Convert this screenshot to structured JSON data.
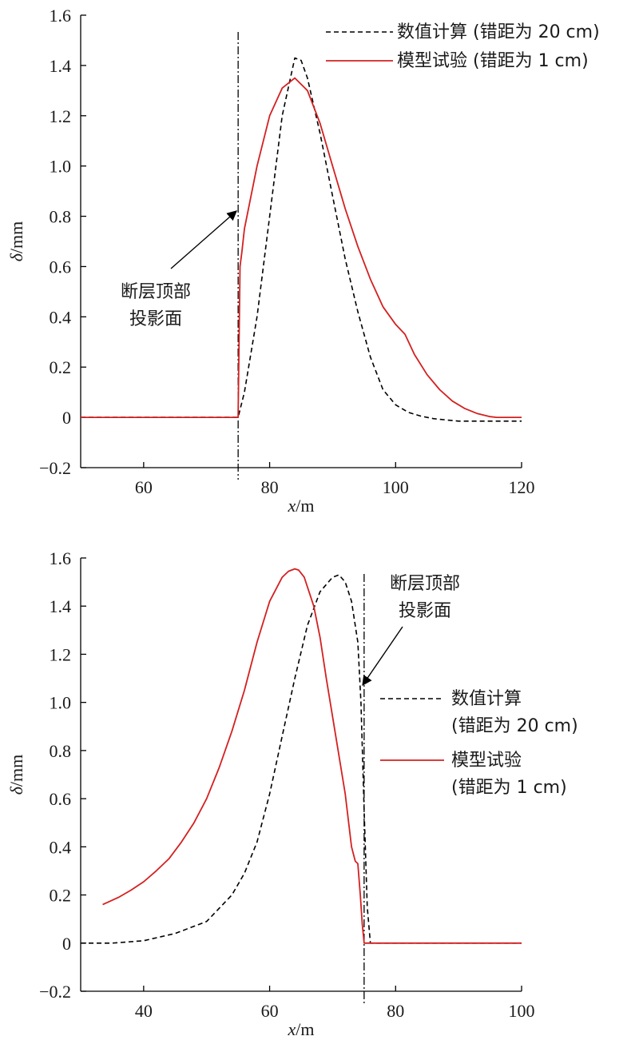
{
  "figure": {
    "charts": [
      {
        "ylabel": "δ/mm",
        "xlabel": "x/m",
        "annotation": [
          "断层顶部",
          "投影面"
        ],
        "legend_lines": [
          {
            "series": 0,
            "lines": [
              "数值计算 (错距为 20 cm)"
            ]
          },
          {
            "series": 1,
            "lines": [
              "模型试验 (错距为 1 cm)"
            ]
          }
        ]
      },
      {
        "ylabel": "δ/mm",
        "xlabel": "x/m",
        "annotation": [
          "断层顶部",
          "投影面"
        ],
        "legend_lines": [
          {
            "series": 0,
            "lines": [
              "数值计算",
              "(错距为 20 cm)"
            ]
          },
          {
            "series": 1,
            "lines": [
              "模型试验",
              "(错距为 1 cm)"
            ]
          }
        ]
      }
    ]
  },
  "chart_data": [
    {
      "type": "line",
      "xlabel": "x/m",
      "ylabel": "δ/mm",
      "xlim": [
        50,
        120
      ],
      "ylim": [
        -0.2,
        1.6
      ],
      "xticks": [
        60,
        80,
        100,
        120
      ],
      "yticks": [
        -0.2,
        0,
        0.2,
        0.4,
        0.6,
        0.8,
        1.0,
        1.2,
        1.4,
        1.6
      ],
      "ytick_labels": [
        "−0.2",
        "0",
        "0.2",
        "0.4",
        "0.6",
        "0.8",
        "1.0",
        "1.2",
        "1.4",
        "1.6"
      ],
      "fault_projection_x": 75,
      "legend_position": "top-right",
      "grid": false,
      "series": [
        {
          "name": "数值计算 (错距为 20 cm)",
          "style": "dashed",
          "color": "#000000",
          "x": [
            50,
            75,
            76,
            78,
            80,
            82,
            84,
            85,
            86,
            88,
            90,
            92,
            94,
            96,
            98,
            100,
            102,
            104,
            106,
            108,
            110,
            112,
            114,
            116,
            118,
            120
          ],
          "y": [
            0,
            0,
            0.1,
            0.4,
            0.8,
            1.2,
            1.43,
            1.42,
            1.35,
            1.13,
            0.88,
            0.63,
            0.42,
            0.24,
            0.11,
            0.05,
            0.02,
            0.005,
            -0.005,
            -0.01,
            -0.015,
            -0.015,
            -0.015,
            -0.015,
            -0.015,
            -0.015
          ]
        },
        {
          "name": "模型试验 (错距为 1 cm)",
          "style": "solid",
          "color": "#d42020",
          "x": [
            50,
            75,
            75.3,
            75.6,
            76,
            78,
            80,
            82,
            84,
            86,
            88,
            90,
            92,
            94,
            96,
            98,
            100,
            101.5,
            103,
            105,
            107,
            109,
            111,
            113,
            115,
            116,
            120
          ],
          "y": [
            0,
            0,
            0.6,
            0.66,
            0.75,
            1.0,
            1.2,
            1.31,
            1.35,
            1.3,
            1.17,
            1.0,
            0.83,
            0.68,
            0.55,
            0.44,
            0.37,
            0.33,
            0.25,
            0.17,
            0.11,
            0.065,
            0.035,
            0.015,
            0.003,
            0,
            0
          ]
        }
      ]
    },
    {
      "type": "line",
      "xlabel": "x/m",
      "ylabel": "δ/mm",
      "xlim": [
        30,
        100
      ],
      "ylim": [
        -0.2,
        1.6
      ],
      "xticks": [
        40,
        60,
        80,
        100
      ],
      "yticks": [
        -0.2,
        0,
        0.2,
        0.4,
        0.6,
        0.8,
        1.0,
        1.2,
        1.4,
        1.6
      ],
      "ytick_labels": [
        "−0.2",
        "0",
        "0.2",
        "0.4",
        "0.6",
        "0.8",
        "1.0",
        "1.2",
        "1.4",
        "1.6"
      ],
      "fault_projection_x": 75,
      "legend_position": "right",
      "grid": false,
      "series": [
        {
          "name": "数值计算 (错距为 20 cm)",
          "style": "dashed",
          "color": "#000000",
          "x": [
            30,
            35,
            40,
            45,
            50,
            54,
            56,
            58,
            60,
            62,
            64,
            66,
            68,
            70,
            71,
            72,
            73,
            74,
            74.5,
            75,
            75.5,
            76,
            80,
            90,
            100
          ],
          "y": [
            0,
            0,
            0.01,
            0.04,
            0.09,
            0.2,
            0.29,
            0.42,
            0.62,
            0.86,
            1.1,
            1.32,
            1.46,
            1.52,
            1.53,
            1.5,
            1.42,
            1.25,
            1.0,
            0.55,
            0.15,
            0,
            0,
            0,
            0
          ]
        },
        {
          "name": "模型试验 (错距为 1 cm)",
          "style": "solid",
          "color": "#d42020",
          "x": [
            33.5,
            36,
            38,
            40,
            42,
            44,
            46,
            48,
            50,
            52,
            54,
            56,
            58,
            60,
            62,
            63,
            64,
            64.6,
            65.5,
            67,
            68,
            69,
            70,
            71,
            72,
            73,
            73.6,
            74,
            74.4,
            74.7,
            75,
            80,
            90,
            100
          ],
          "y": [
            0.16,
            0.19,
            0.22,
            0.255,
            0.3,
            0.35,
            0.42,
            0.5,
            0.6,
            0.73,
            0.88,
            1.05,
            1.25,
            1.42,
            1.52,
            1.545,
            1.555,
            1.55,
            1.52,
            1.4,
            1.27,
            1.1,
            0.94,
            0.78,
            0.62,
            0.4,
            0.34,
            0.33,
            0.2,
            0.08,
            0,
            0,
            0,
            0
          ]
        }
      ]
    }
  ]
}
